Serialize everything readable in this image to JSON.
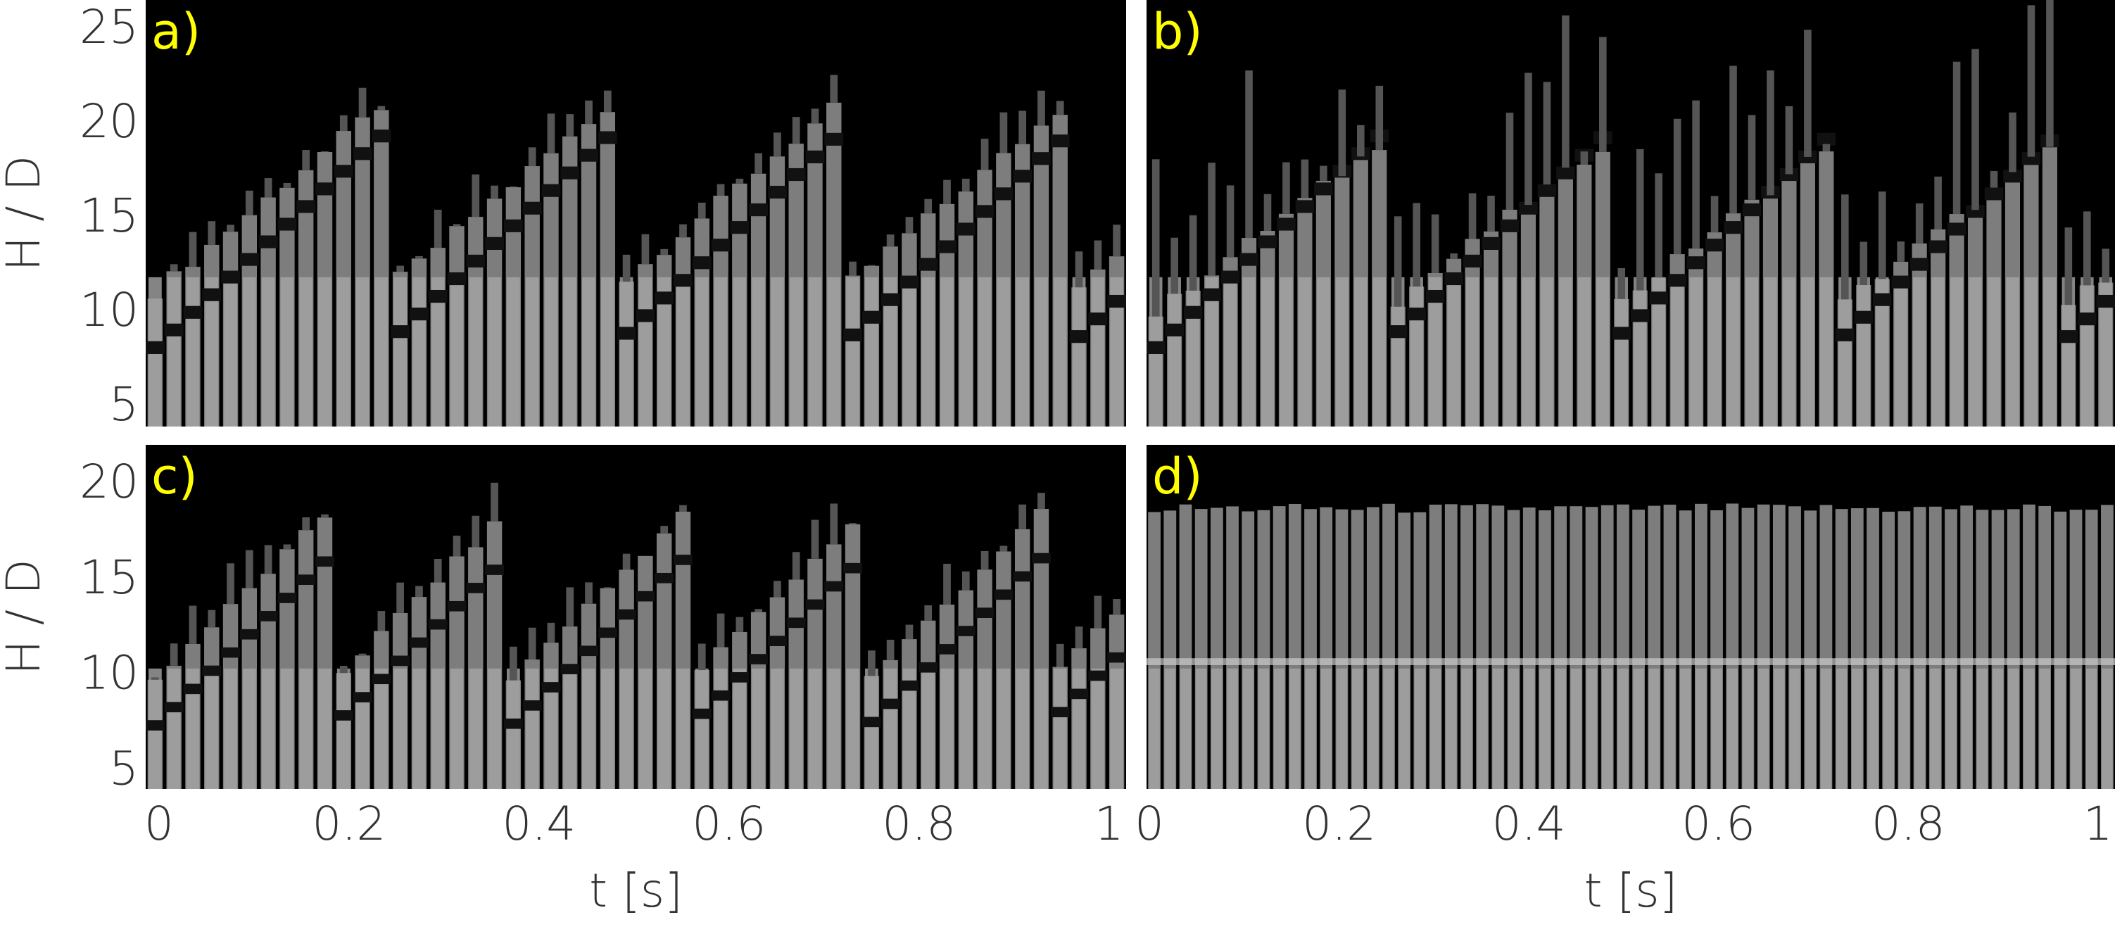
{
  "chart_data": [
    {
      "type": "image",
      "label": "a)",
      "ylabel": "H / D",
      "ylim": [
        4.0,
        26.6
      ],
      "yticks": [
        5,
        10,
        15,
        20,
        25
      ]
    },
    {
      "type": "image",
      "label": "b)"
    },
    {
      "type": "image",
      "label": "c)",
      "ylabel": "H / D",
      "xlabel": "t [s]",
      "ylim": [
        4.1,
        22.1
      ],
      "yticks": [
        5,
        10,
        15,
        20
      ],
      "xlim": [
        -0.014,
        1.018
      ],
      "xticks": [
        0,
        0.2,
        0.4,
        0.6,
        0.8,
        1
      ]
    },
    {
      "type": "image",
      "label": "d)",
      "xlabel": "t [s]",
      "xlim": [
        -0.003,
        1.018
      ],
      "xticks": [
        0,
        0.2,
        0.4,
        0.6,
        0.8,
        1
      ]
    }
  ]
}
